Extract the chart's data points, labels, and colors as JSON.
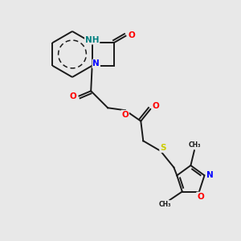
{
  "background_color": "#e8e8e8",
  "bond_color": "#1a1a1a",
  "atom_colors": {
    "N": "#0000ff",
    "NH": "#008080",
    "O": "#ff0000",
    "S": "#cccc00",
    "C": "#1a1a1a"
  },
  "bond_lw": 1.4,
  "font_size": 7.5
}
